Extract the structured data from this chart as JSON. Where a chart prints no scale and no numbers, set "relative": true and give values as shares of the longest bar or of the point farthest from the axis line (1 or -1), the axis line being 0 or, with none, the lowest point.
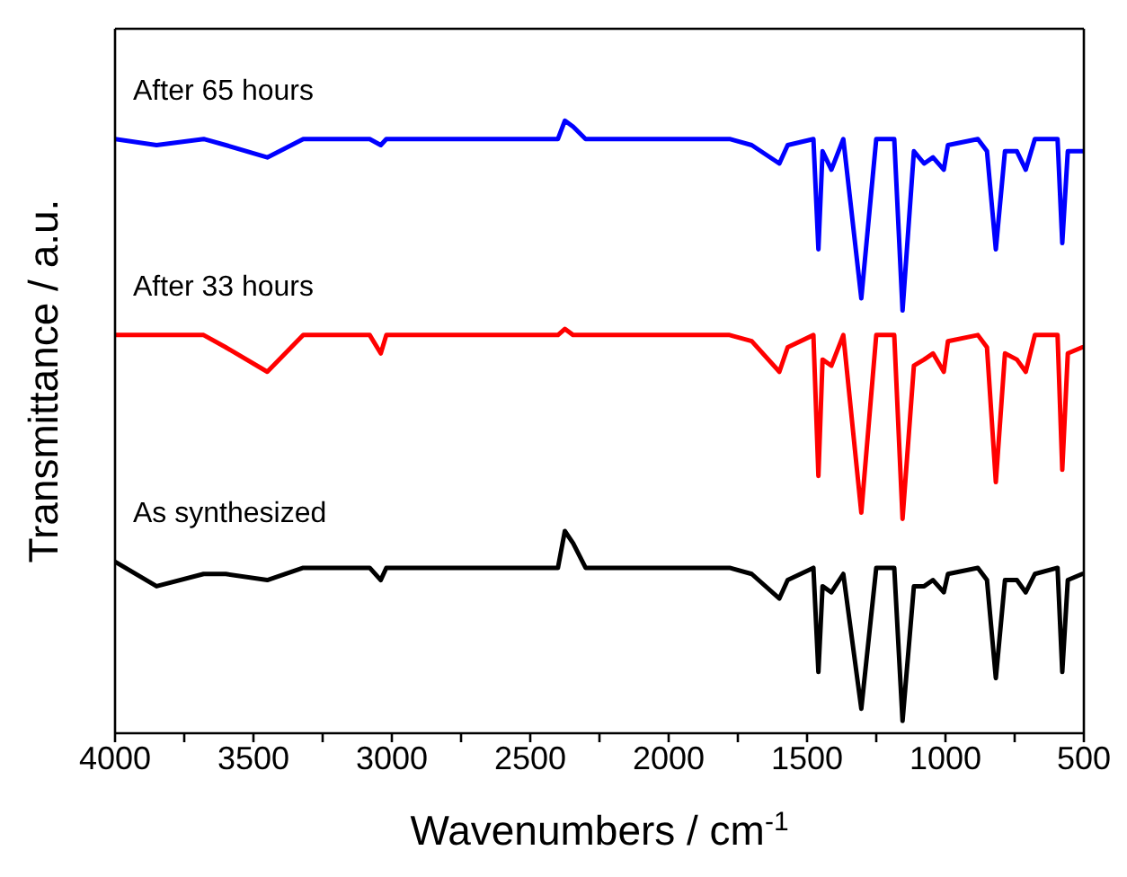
{
  "chart_data": {
    "type": "line",
    "relative": true,
    "xlabel": "Wavenumbers / cm$^{-1}$",
    "ylabel": "Transmittance / a.u.",
    "x": [
      4000,
      3850,
      3680,
      3600,
      3450,
      3320,
      3080,
      3040,
      3020,
      2400,
      2375,
      2345,
      2300,
      1780,
      1700,
      1600,
      1570,
      1477,
      1459,
      1444,
      1412,
      1369,
      1304,
      1250,
      1185,
      1155,
      1114,
      1077,
      1045,
      1006,
      991,
      883,
      850,
      818,
      785,
      742,
      710,
      677,
      595,
      578,
      558,
      506,
      500
    ],
    "xlim": [
      4000,
      500
    ],
    "xticks": [
      4000,
      {
        "value": 3750,
        "label": null
      },
      3500,
      {
        "value": 3250,
        "label": null
      },
      3000,
      {
        "value": 2750,
        "label": null
      },
      2500,
      {
        "value": 2250,
        "label": null
      },
      2000,
      {
        "value": 1750,
        "label": null
      },
      1500,
      {
        "value": 1250,
        "label": null
      },
      1000,
      {
        "value": 750,
        "label": null
      },
      500
    ],
    "legend": false,
    "marker": "none",
    "line_style": "solid",
    "series": [
      {
        "name": "After 65 hours",
        "color": "#0000ff",
        "values": [
          0.97,
          0.96,
          0.97,
          0.96,
          0.94,
          0.97,
          0.97,
          0.96,
          0.97,
          0.97,
          1.0,
          0.99,
          0.97,
          0.97,
          0.96,
          0.93,
          0.96,
          0.97,
          0.79,
          0.95,
          0.92,
          0.97,
          0.71,
          0.97,
          0.97,
          0.69,
          0.95,
          0.93,
          0.94,
          0.92,
          0.96,
          0.97,
          0.95,
          0.79,
          0.95,
          0.95,
          0.92,
          0.97,
          0.97,
          0.8,
          0.95,
          0.95,
          0.95
        ]
      },
      {
        "name": "After 33 hours",
        "color": "#ff0000",
        "values": [
          0.65,
          0.65,
          0.65,
          0.63,
          0.59,
          0.65,
          0.65,
          0.62,
          0.65,
          0.65,
          0.66,
          0.65,
          0.65,
          0.65,
          0.64,
          0.59,
          0.63,
          0.65,
          0.42,
          0.61,
          0.6,
          0.65,
          0.36,
          0.65,
          0.65,
          0.35,
          0.6,
          0.61,
          0.62,
          0.59,
          0.64,
          0.65,
          0.63,
          0.41,
          0.62,
          0.61,
          0.59,
          0.65,
          0.65,
          0.43,
          0.62,
          0.63,
          0.63
        ]
      },
      {
        "name": "As synthesized",
        "color": "#000000",
        "values": [
          0.28,
          0.24,
          0.26,
          0.26,
          0.25,
          0.27,
          0.27,
          0.25,
          0.27,
          0.27,
          0.33,
          0.31,
          0.27,
          0.27,
          0.26,
          0.22,
          0.25,
          0.27,
          0.1,
          0.24,
          0.23,
          0.26,
          0.04,
          0.27,
          0.27,
          0.02,
          0.24,
          0.24,
          0.25,
          0.23,
          0.26,
          0.27,
          0.25,
          0.09,
          0.25,
          0.25,
          0.23,
          0.26,
          0.27,
          0.1,
          0.25,
          0.26,
          0.26
        ]
      }
    ]
  }
}
